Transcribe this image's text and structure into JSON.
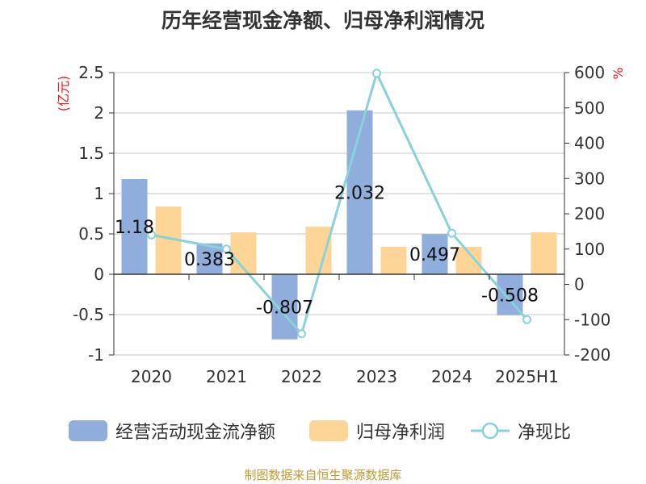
{
  "title": "历年经营现金净额、归母净利润情况",
  "source": "制图数据来自恒生聚源数据库",
  "colors": {
    "cash": "#8faedc",
    "profit": "#fdd697",
    "ratio": "#88d2d8",
    "unit": "#e8191b"
  },
  "chart_data": {
    "type": "bar",
    "categories": [
      "2020",
      "2021",
      "2022",
      "2023",
      "2024",
      "2025H1"
    ],
    "y_left": {
      "label": "(亿元)",
      "range": [
        -1,
        2.5
      ],
      "ticks": [
        "2.5",
        "2",
        "1.5",
        "1",
        "0.5",
        "0",
        "-0.5",
        "-1"
      ]
    },
    "y_right": {
      "label": "%",
      "range": [
        -200,
        600
      ],
      "ticks": [
        "600",
        "500",
        "400",
        "300",
        "200",
        "100",
        "0",
        "-100",
        "-200"
      ]
    },
    "grid": true,
    "legend_position": "bottom",
    "series": [
      {
        "name": "经营活动现金流净额",
        "type": "bar",
        "axis": "left",
        "values": [
          1.18,
          0.383,
          -0.807,
          2.032,
          0.497,
          -0.508
        ],
        "labels": [
          "1.18",
          "0.383",
          "-0.807",
          "2.032",
          "0.497",
          "-0.508"
        ]
      },
      {
        "name": "归母净利润",
        "type": "bar",
        "axis": "left",
        "values": [
          0.84,
          0.52,
          0.59,
          0.34,
          0.34,
          0.52
        ]
      },
      {
        "name": "净现比",
        "type": "line",
        "axis": "right",
        "values": [
          140,
          100,
          -140,
          598,
          145,
          -100
        ]
      }
    ]
  }
}
